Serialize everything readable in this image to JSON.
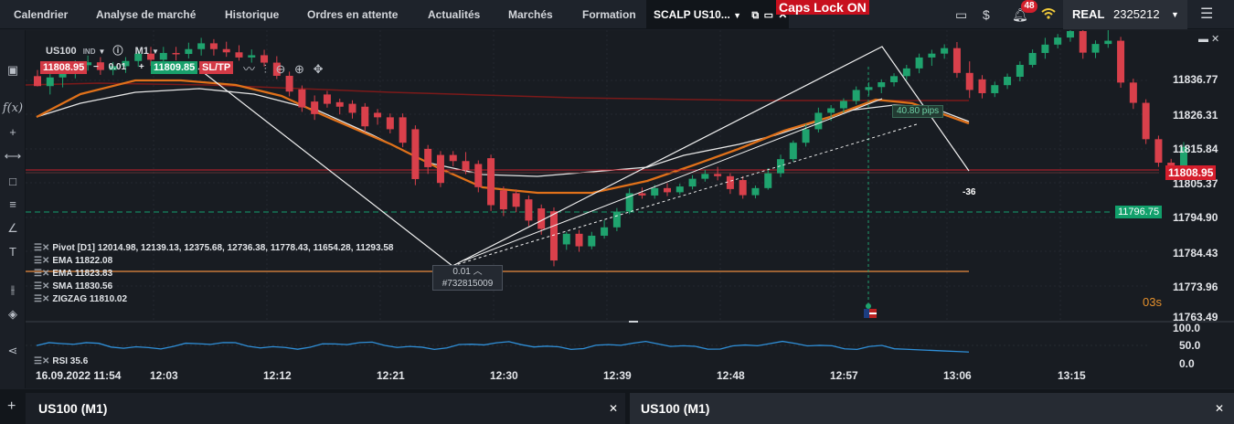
{
  "nav": {
    "tabs": [
      "Calendrier",
      "Analyse de marché",
      "Historique",
      "Ordres en attente",
      "Actualités",
      "Marchés",
      "Formation"
    ],
    "active_tab": "SCALP US10...",
    "caps_lock": "Caps Lock ON",
    "notifications": "48",
    "account_mode": "REAL",
    "account_id": "2325212"
  },
  "chart": {
    "symbol": "US100",
    "tag": "IND",
    "timeframe": "M1",
    "sell_price": "11808.95",
    "volume": "0.01",
    "buy_price": "11809.85",
    "sltp": "SL/TP",
    "current_price": "11808.95",
    "pending_price": "11796.75",
    "position_volume": "0.01",
    "position_id": "#732815009",
    "measure": "40.80 pips",
    "pip_delta": "-36",
    "countdown": "03s"
  },
  "indicators": [
    "Pivot [D1] 12014.98, 12139.13, 12375.68, 12736.38, 11778.43, 11654.28, 11293.58",
    "EMA 11822.08",
    "EMA 11823.83",
    "SMA 11830.56",
    "ZIGZAG 11810.02"
  ],
  "rsi": {
    "label": "RSI 35.6",
    "levels": [
      "100.0",
      "50.0",
      "0.0"
    ]
  },
  "price_axis": [
    "11836.77",
    "11826.31",
    "11815.84",
    "11805.37",
    "11794.90",
    "11784.43",
    "11773.96",
    "11763.49"
  ],
  "time_axis": [
    "16.09.2022 11:54",
    "12:03",
    "12:12",
    "12:21",
    "12:30",
    "12:39",
    "12:48",
    "12:57",
    "13:06",
    "13:15"
  ],
  "bottom_tabs": [
    "US100 (M1)",
    "US100 (M1)"
  ],
  "colors": {
    "up": "#1fa36e",
    "down": "#d9404b",
    "ema_orange": "#e0711a",
    "sma_white": "#e6e6e6",
    "ema_red": "#7c1a1a",
    "rsi_blue": "#2f8fd8",
    "pending_green": "#13a06d"
  },
  "chart_data": {
    "type": "candlestick",
    "interval": "1 minute",
    "candles": [
      {
        "o": 11838.1,
        "h": 11840.0,
        "l": 11834.9,
        "c": 11835.0
      },
      {
        "o": 11835.0,
        "h": 11838.9,
        "l": 11832.4,
        "c": 11837.7
      },
      {
        "o": 11837.7,
        "h": 11840.0,
        "l": 11834.6,
        "c": 11839.6
      },
      {
        "o": 11839.6,
        "h": 11843.0,
        "l": 11837.4,
        "c": 11841.5
      },
      {
        "o": 11841.5,
        "h": 11844.5,
        "l": 11839.8,
        "c": 11842.4
      },
      {
        "o": 11842.4,
        "h": 11844.0,
        "l": 11838.5,
        "c": 11840.0
      },
      {
        "o": 11840.0,
        "h": 11842.5,
        "l": 11838.4,
        "c": 11841.2
      },
      {
        "o": 11841.2,
        "h": 11844.0,
        "l": 11839.1,
        "c": 11842.8
      },
      {
        "o": 11842.8,
        "h": 11846.5,
        "l": 11841.0,
        "c": 11845.1
      },
      {
        "o": 11845.1,
        "h": 11847.2,
        "l": 11841.3,
        "c": 11843.2
      },
      {
        "o": 11843.2,
        "h": 11847.2,
        "l": 11841.2,
        "c": 11845.3
      },
      {
        "o": 11845.3,
        "h": 11847.2,
        "l": 11843.0,
        "c": 11845.0
      },
      {
        "o": 11845.0,
        "h": 11848.5,
        "l": 11843.6,
        "c": 11846.5
      },
      {
        "o": 11846.5,
        "h": 11850.0,
        "l": 11844.5,
        "c": 11848.3
      },
      {
        "o": 11848.3,
        "h": 11849.6,
        "l": 11844.5,
        "c": 11846.5
      },
      {
        "o": 11846.5,
        "h": 11848.8,
        "l": 11844.1,
        "c": 11845.5
      },
      {
        "o": 11845.5,
        "h": 11847.7,
        "l": 11842.9,
        "c": 11843.9
      },
      {
        "o": 11843.9,
        "h": 11846.4,
        "l": 11842.3,
        "c": 11844.6
      },
      {
        "o": 11844.6,
        "h": 11846.3,
        "l": 11841.1,
        "c": 11842.3
      },
      {
        "o": 11842.3,
        "h": 11844.3,
        "l": 11837.2,
        "c": 11838.2
      },
      {
        "o": 11838.2,
        "h": 11839.5,
        "l": 11831.8,
        "c": 11833.3
      },
      {
        "o": 11834.0,
        "h": 11835.2,
        "l": 11827.0,
        "c": 11828.4
      },
      {
        "o": 11830.2,
        "h": 11832.1,
        "l": 11824.5,
        "c": 11826.3
      },
      {
        "o": 11832.4,
        "h": 11833.5,
        "l": 11828.3,
        "c": 11829.5
      },
      {
        "o": 11830.0,
        "h": 11831.1,
        "l": 11826.2,
        "c": 11828.6
      },
      {
        "o": 11829.5,
        "h": 11830.6,
        "l": 11824.9,
        "c": 11826.7
      },
      {
        "o": 11828.6,
        "h": 11829.7,
        "l": 11820.8,
        "c": 11822.5
      },
      {
        "o": 11826.7,
        "h": 11827.9,
        "l": 11823.0,
        "c": 11825.3
      },
      {
        "o": 11825.3,
        "h": 11826.5,
        "l": 11820.3,
        "c": 11821.6
      },
      {
        "o": 11825.3,
        "h": 11826.5,
        "l": 11816.0,
        "c": 11817.4
      },
      {
        "o": 11821.6,
        "h": 11822.8,
        "l": 11804.2,
        "c": 11806.1
      },
      {
        "o": 11815.5,
        "h": 11816.7,
        "l": 11807.7,
        "c": 11809.8
      },
      {
        "o": 11813.6,
        "h": 11814.8,
        "l": 11803.6,
        "c": 11804.9
      },
      {
        "o": 11813.6,
        "h": 11814.8,
        "l": 11810.1,
        "c": 11811.7
      },
      {
        "o": 11811.7,
        "h": 11814.5,
        "l": 11807.6,
        "c": 11808.9
      },
      {
        "o": 11810.8,
        "h": 11811.9,
        "l": 11802.0,
        "c": 11803.6
      },
      {
        "o": 11812.6,
        "h": 11813.7,
        "l": 11796.2,
        "c": 11798.0
      },
      {
        "o": 11802.6,
        "h": 11803.8,
        "l": 11794.6,
        "c": 11796.7
      },
      {
        "o": 11801.7,
        "h": 11802.9,
        "l": 11795.8,
        "c": 11797.5
      },
      {
        "o": 11799.8,
        "h": 11801.0,
        "l": 11791.5,
        "c": 11793.2
      },
      {
        "o": 11797.0,
        "h": 11798.2,
        "l": 11788.8,
        "c": 11790.6
      },
      {
        "o": 11796.1,
        "h": 11797.3,
        "l": 11779.0,
        "c": 11780.8
      },
      {
        "o": 11785.8,
        "h": 11789.7,
        "l": 11784.1,
        "c": 11789.1
      },
      {
        "o": 11789.1,
        "h": 11790.3,
        "l": 11783.5,
        "c": 11785.2
      },
      {
        "o": 11785.2,
        "h": 11789.7,
        "l": 11784.3,
        "c": 11788.5
      },
      {
        "o": 11788.5,
        "h": 11793.3,
        "l": 11787.6,
        "c": 11791.1
      },
      {
        "o": 11791.1,
        "h": 11797.1,
        "l": 11789.9,
        "c": 11796.0
      },
      {
        "o": 11796.0,
        "h": 11803.2,
        "l": 11795.2,
        "c": 11801.7
      },
      {
        "o": 11801.7,
        "h": 11803.5,
        "l": 11800.0,
        "c": 11801.0
      },
      {
        "o": 11801.0,
        "h": 11804.3,
        "l": 11800.0,
        "c": 11803.3
      },
      {
        "o": 11803.3,
        "h": 11804.8,
        "l": 11800.8,
        "c": 11802.0
      },
      {
        "o": 11802.0,
        "h": 11804.7,
        "l": 11801.3,
        "c": 11803.8
      },
      {
        "o": 11803.8,
        "h": 11807.3,
        "l": 11802.9,
        "c": 11806.2
      },
      {
        "o": 11806.2,
        "h": 11808.9,
        "l": 11805.3,
        "c": 11807.7
      },
      {
        "o": 11807.7,
        "h": 11809.9,
        "l": 11805.7,
        "c": 11807.0
      },
      {
        "o": 11807.0,
        "h": 11807.9,
        "l": 11801.5,
        "c": 11803.0
      },
      {
        "o": 11805.8,
        "h": 11807.0,
        "l": 11800.0,
        "c": 11801.1
      },
      {
        "o": 11801.1,
        "h": 11804.1,
        "l": 11800.1,
        "c": 11803.3
      },
      {
        "o": 11803.3,
        "h": 11809.5,
        "l": 11802.8,
        "c": 11807.9
      },
      {
        "o": 11807.9,
        "h": 11813.7,
        "l": 11806.7,
        "c": 11812.3
      },
      {
        "o": 11812.3,
        "h": 11818.1,
        "l": 11811.5,
        "c": 11817.4
      },
      {
        "o": 11817.4,
        "h": 11823.2,
        "l": 11816.2,
        "c": 11821.6
      },
      {
        "o": 11821.6,
        "h": 11828.3,
        "l": 11820.6,
        "c": 11826.7
      },
      {
        "o": 11826.7,
        "h": 11829.1,
        "l": 11824.2,
        "c": 11828.1
      },
      {
        "o": 11828.1,
        "h": 11831.2,
        "l": 11826.7,
        "c": 11830.4
      },
      {
        "o": 11830.4,
        "h": 11834.9,
        "l": 11829.3,
        "c": 11833.8
      },
      {
        "o": 11833.8,
        "h": 11836.2,
        "l": 11832.1,
        "c": 11834.7
      },
      {
        "o": 11834.7,
        "h": 11837.1,
        "l": 11832.8,
        "c": 11836.2
      },
      {
        "o": 11836.2,
        "h": 11839.0,
        "l": 11834.9,
        "c": 11838.1
      },
      {
        "o": 11838.1,
        "h": 11841.6,
        "l": 11836.9,
        "c": 11840.5
      },
      {
        "o": 11840.5,
        "h": 11845.1,
        "l": 11839.0,
        "c": 11843.9
      },
      {
        "o": 11843.9,
        "h": 11846.3,
        "l": 11841.3,
        "c": 11845.1
      },
      {
        "o": 11845.1,
        "h": 11848.0,
        "l": 11843.5,
        "c": 11846.8
      },
      {
        "o": 11846.8,
        "h": 11848.7,
        "l": 11837.6,
        "c": 11839.1
      },
      {
        "o": 11839.1,
        "h": 11842.7,
        "l": 11831.3,
        "c": 11833.8
      },
      {
        "o": 11837.1,
        "h": 11838.4,
        "l": 11831.2,
        "c": 11832.8
      },
      {
        "o": 11832.8,
        "h": 11836.4,
        "l": 11831.6,
        "c": 11835.3
      },
      {
        "o": 11835.3,
        "h": 11838.9,
        "l": 11834.1,
        "c": 11837.9
      },
      {
        "o": 11837.9,
        "h": 11842.7,
        "l": 11836.5,
        "c": 11841.6
      },
      {
        "o": 11841.6,
        "h": 11846.4,
        "l": 11840.8,
        "c": 11845.3
      },
      {
        "o": 11845.3,
        "h": 11850.0,
        "l": 11843.5,
        "c": 11847.9
      },
      {
        "o": 11847.9,
        "h": 11851.2,
        "l": 11846.7,
        "c": 11850.1
      },
      {
        "o": 11850.1,
        "h": 11853.4,
        "l": 11848.8,
        "c": 11852.1
      },
      {
        "o": 11852.1,
        "h": 11853.9,
        "l": 11843.5,
        "c": 11845.4
      },
      {
        "o": 11845.4,
        "h": 11849.2,
        "l": 11843.7,
        "c": 11848.1
      },
      {
        "o": 11848.1,
        "h": 11853.0,
        "l": 11846.9,
        "c": 11849.1
      },
      {
        "o": 11849.1,
        "h": 11850.3,
        "l": 11834.5,
        "c": 11836.1
      },
      {
        "o": 11836.1,
        "h": 11837.3,
        "l": 11827.9,
        "c": 11829.8
      },
      {
        "o": 11829.8,
        "h": 11830.9,
        "l": 11817.0,
        "c": 11818.5
      },
      {
        "o": 11818.5,
        "h": 11819.6,
        "l": 11809.9,
        "c": 11811.2
      },
      {
        "o": 11811.2,
        "h": 11812.4,
        "l": 11805.8,
        "c": 11808.0
      },
      {
        "o": 11808.0,
        "h": 11817.6,
        "l": 11807.1,
        "c": 11816.1
      }
    ]
  }
}
